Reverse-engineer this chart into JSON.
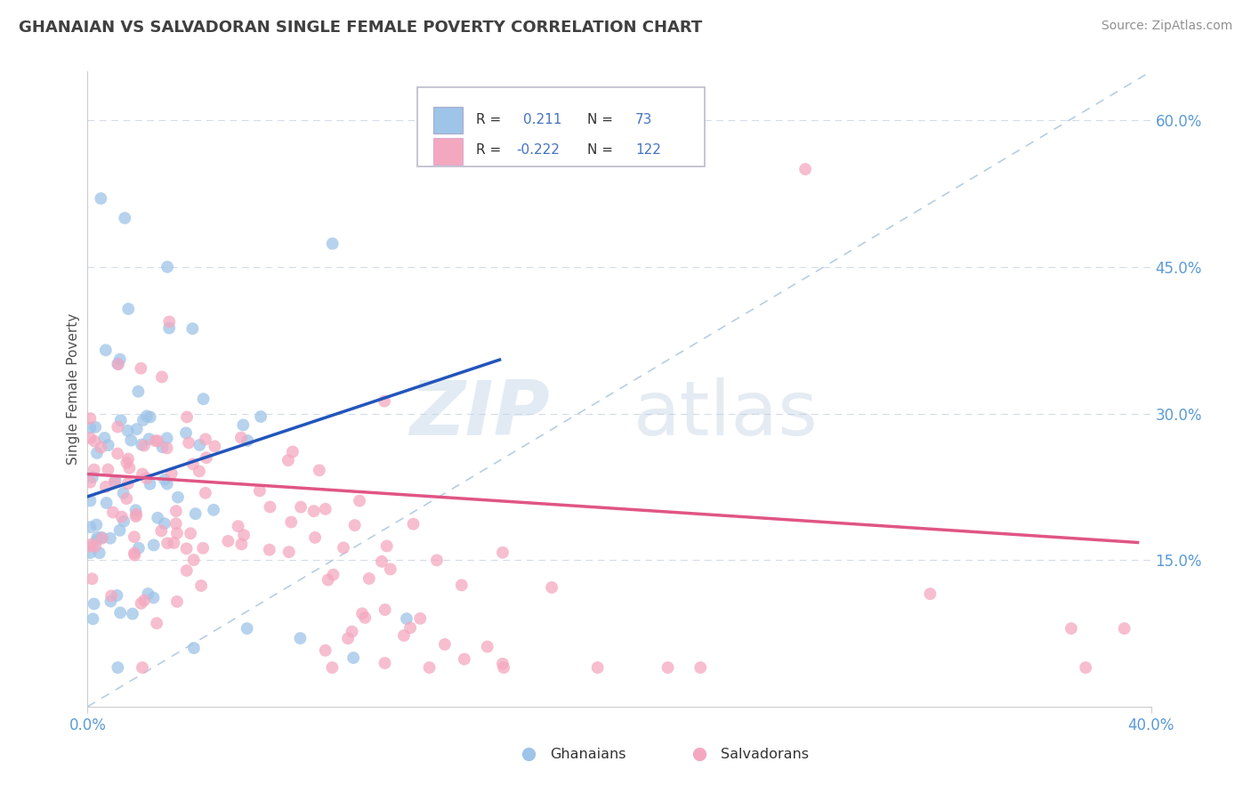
{
  "title": "GHANAIAN VS SALVADORAN SINGLE FEMALE POVERTY CORRELATION CHART",
  "source": "Source: ZipAtlas.com",
  "ylabel": "Single Female Poverty",
  "xlim": [
    0.0,
    0.4
  ],
  "ylim": [
    0.0,
    0.65
  ],
  "x_ticks": [
    0.0,
    0.4
  ],
  "x_tick_labels": [
    "0.0%",
    "40.0%"
  ],
  "y_ticks_right": [
    0.15,
    0.3,
    0.45,
    0.6
  ],
  "y_tick_labels_right": [
    "15.0%",
    "30.0%",
    "45.0%",
    "60.0%"
  ],
  "ghanaian_color": "#9ec4e8",
  "salvadoran_color": "#f4a8c0",
  "ghanaian_line_color": "#2255bb",
  "salvadoran_line_color": "#e05585",
  "diagonal_line_color": "#b0c8e0",
  "R_ghanaian": 0.211,
  "N_ghanaian": 73,
  "R_salvadoran": -0.222,
  "N_salvadoran": 122,
  "legend_ghanaians": "Ghanaians",
  "legend_salvadorans": "Salvadorans",
  "title_color": "#404040",
  "source_color": "#909090",
  "gh_line_x0": 0.0,
  "gh_line_y0": 0.215,
  "gh_line_x1": 0.155,
  "gh_line_y1": 0.355,
  "sal_line_x0": 0.0,
  "sal_line_y0": 0.238,
  "sal_line_x1": 0.395,
  "sal_line_y1": 0.168
}
